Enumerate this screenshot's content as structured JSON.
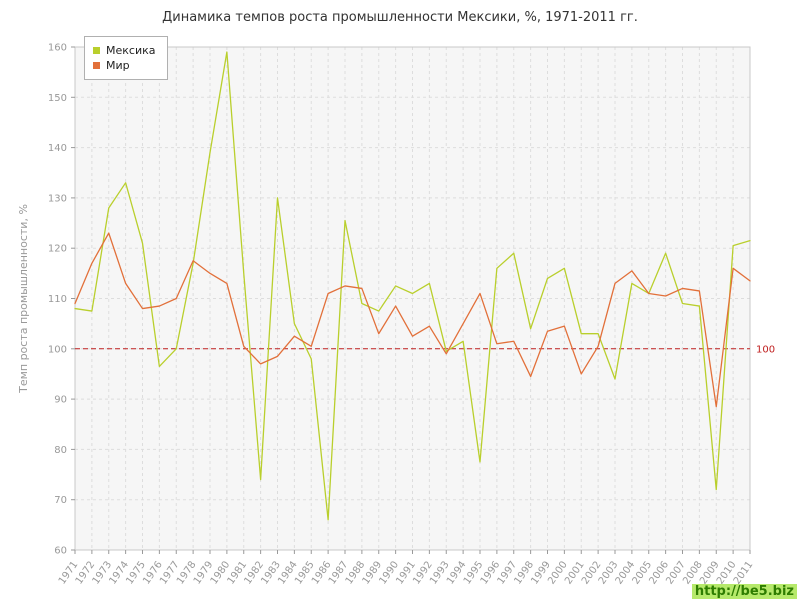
{
  "watermark": {
    "text": "http://be5.biz"
  },
  "chart_data": {
    "type": "line",
    "title": "Динамика темпов роста промышленности Мексики, %, 1971-2011 гг.",
    "xlabel": "",
    "ylabel": "Темп роста промышленности, %",
    "ylim": [
      60,
      160
    ],
    "yticks": [
      60,
      70,
      80,
      90,
      100,
      110,
      120,
      130,
      140,
      150,
      160
    ],
    "grid": true,
    "legend_position": "top-left",
    "categories": [
      "1971",
      "1972",
      "1973",
      "1974",
      "1975",
      "1976",
      "1977",
      "1978",
      "1979",
      "1980",
      "1981",
      "1982",
      "1983",
      "1984",
      "1985",
      "1986",
      "1987",
      "1988",
      "1989",
      "1990",
      "1991",
      "1992",
      "1993",
      "1994",
      "1995",
      "1996",
      "1997",
      "1998",
      "1999",
      "2000",
      "2001",
      "2002",
      "2003",
      "2004",
      "2005",
      "2006",
      "2007",
      "2008",
      "2009",
      "2010",
      "2011"
    ],
    "series": [
      {
        "name": "Мексика",
        "color": "#b9cf2c",
        "values": [
          108,
          107.5,
          128,
          133,
          121,
          96.5,
          100,
          117,
          139,
          159,
          115,
          74,
          130,
          105,
          98,
          66,
          125.5,
          109,
          107.5,
          112.5,
          111,
          113,
          99.5,
          101.5,
          77.5,
          116,
          119,
          104,
          114,
          116,
          103,
          103,
          94,
          113,
          111,
          119,
          109,
          108.5,
          72,
          120.5,
          121.5
        ]
      },
      {
        "name": "Мир",
        "color": "#e2703a",
        "values": [
          109,
          117,
          123,
          113,
          108,
          108.5,
          110,
          117.5,
          115,
          113,
          100.5,
          97,
          98.5,
          102.5,
          100.5,
          111,
          112.5,
          112,
          103,
          108.5,
          102.5,
          104.5,
          99,
          105,
          111,
          101,
          101.5,
          94.5,
          103.5,
          104.5,
          95,
          100.5,
          113,
          115.5,
          111,
          110.5,
          112,
          111.5,
          88.5,
          116,
          113.5
        ]
      }
    ],
    "ref_line": {
      "value": 100,
      "label": "100",
      "color": "#c02020"
    },
    "plot_bg_color": "#f6f6f6",
    "grid_color": "#dddddd",
    "axis_text_color": "#999999"
  }
}
